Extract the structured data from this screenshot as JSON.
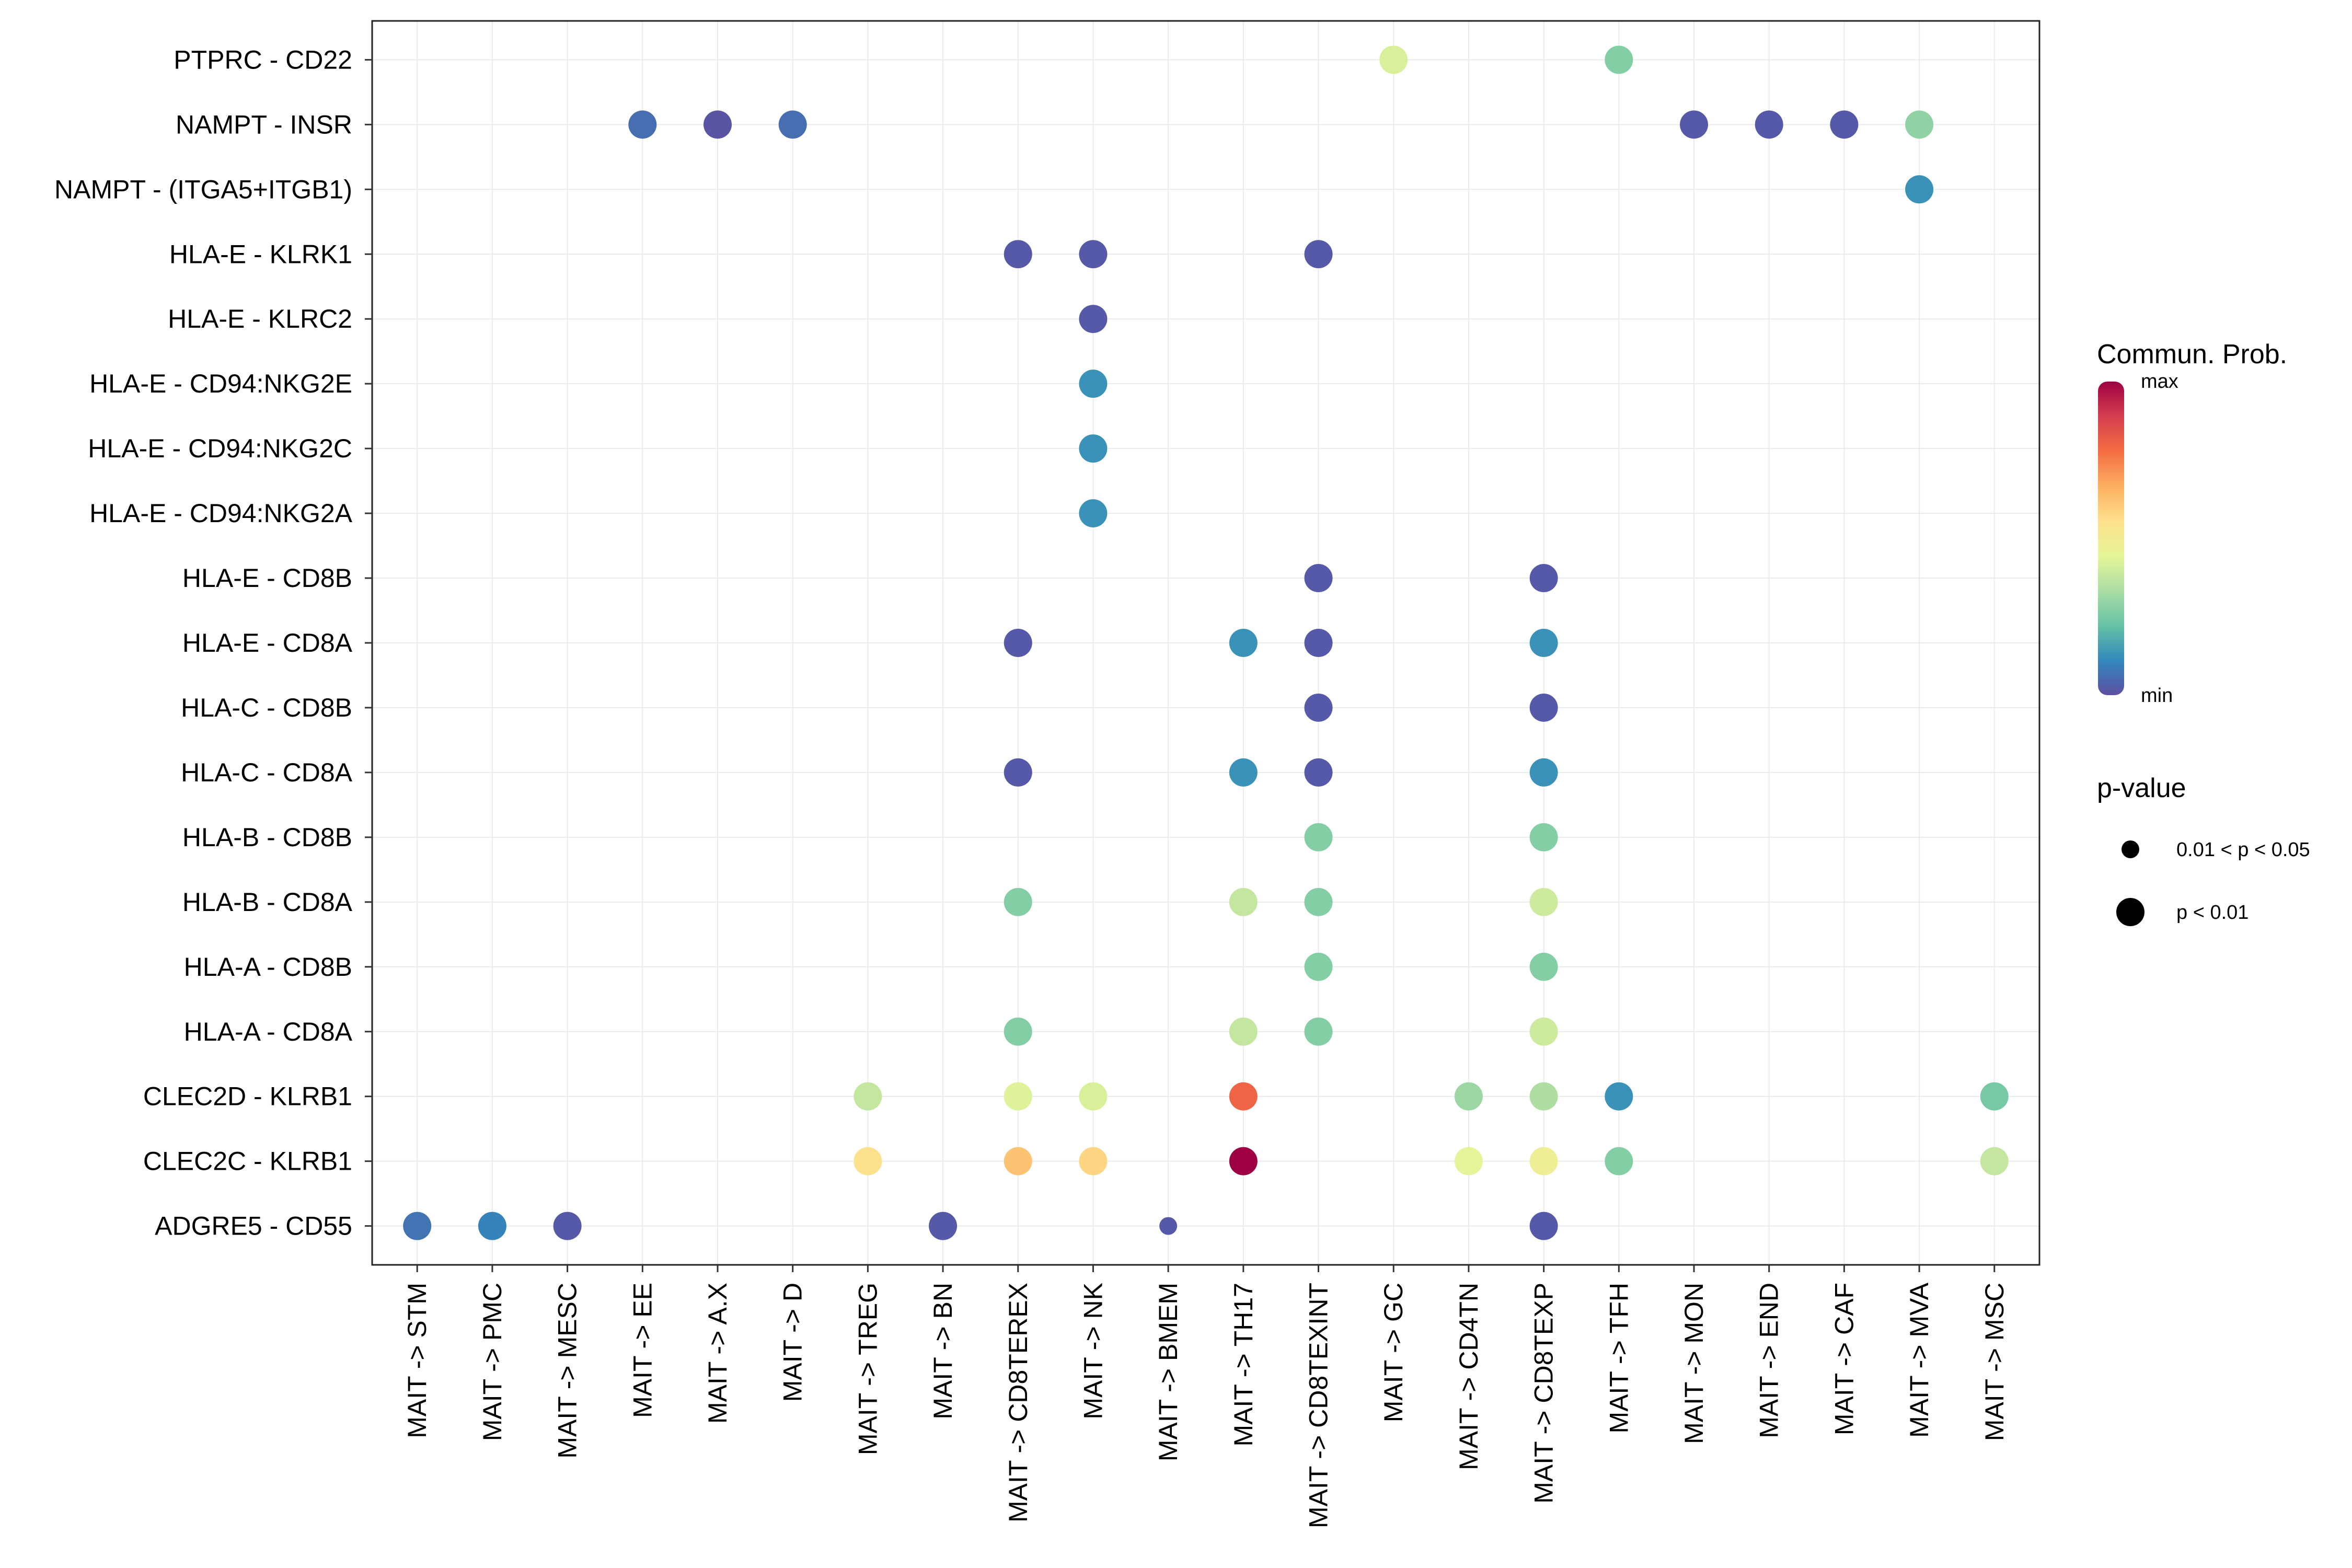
{
  "chart_data": {
    "type": "dot",
    "title": "",
    "xlabel": "",
    "ylabel": "",
    "grid": true,
    "legend_placement": "right",
    "x_categories": [
      "MAIT -> STM",
      "MAIT -> PMC",
      "MAIT -> MESC",
      "MAIT -> EE",
      "MAIT -> A.X",
      "MAIT -> D",
      "MAIT -> TREG",
      "MAIT -> BN",
      "MAIT -> CD8TEREX",
      "MAIT -> NK",
      "MAIT -> BMEM",
      "MAIT -> TH17",
      "MAIT -> CD8TEXINT",
      "MAIT -> GC",
      "MAIT -> CD4TN",
      "MAIT -> CD8TEXP",
      "MAIT -> TFH",
      "MAIT -> MON",
      "MAIT -> END",
      "MAIT -> CAF",
      "MAIT -> MVA",
      "MAIT -> MSC"
    ],
    "y_categories": [
      "PTPRC - CD22",
      "NAMPT - INSR",
      "NAMPT - (ITGA5+ITGB1)",
      "HLA-E - KLRK1",
      "HLA-E - KLRC2",
      "HLA-E - CD94:NKG2E",
      "HLA-E - CD94:NKG2C",
      "HLA-E - CD94:NKG2A",
      "HLA-E - CD8B",
      "HLA-E - CD8A",
      "HLA-C - CD8B",
      "HLA-C - CD8A",
      "HLA-B - CD8B",
      "HLA-B - CD8A",
      "HLA-A - CD8B",
      "HLA-A - CD8A",
      "CLEC2D - KLRB1",
      "CLEC2C - KLRB1",
      "ADGRE5 - CD55"
    ],
    "color_scale": {
      "title": "Commun. Prob.",
      "max_label": "max",
      "min_label": "min",
      "stops": [
        "#5e4fa2",
        "#3288bd",
        "#66c2a5",
        "#abdda4",
        "#e6f598",
        "#fee08b",
        "#fdae61",
        "#f46d43",
        "#d53e4f",
        "#9e0142"
      ]
    },
    "pvalue_legend": {
      "title": "p-value",
      "levels": [
        {
          "label": "0.01 < p < 0.05",
          "size": "small"
        },
        {
          "label": "p < 0.01",
          "size": "large"
        }
      ]
    },
    "points": [
      {
        "x": "MAIT -> GC",
        "y": "PTPRC - CD22",
        "prob": 0.42,
        "p": "p < 0.01"
      },
      {
        "x": "MAIT -> TFH",
        "y": "PTPRC - CD22",
        "prob": 0.27,
        "p": "p < 0.01"
      },
      {
        "x": "MAIT -> EE",
        "y": "NAMPT - INSR",
        "prob": 0.06,
        "p": "p < 0.01"
      },
      {
        "x": "MAIT -> A.X",
        "y": "NAMPT - INSR",
        "prob": 0.01,
        "p": "p < 0.01"
      },
      {
        "x": "MAIT -> D",
        "y": "NAMPT - INSR",
        "prob": 0.06,
        "p": "p < 0.01"
      },
      {
        "x": "MAIT -> MON",
        "y": "NAMPT - INSR",
        "prob": 0.02,
        "p": "p < 0.01"
      },
      {
        "x": "MAIT -> END",
        "y": "NAMPT - INSR",
        "prob": 0.02,
        "p": "p < 0.01"
      },
      {
        "x": "MAIT -> CAF",
        "y": "NAMPT - INSR",
        "prob": 0.02,
        "p": "p < 0.01"
      },
      {
        "x": "MAIT -> MVA",
        "y": "NAMPT - INSR",
        "prob": 0.29,
        "p": "p < 0.01"
      },
      {
        "x": "MAIT -> MVA",
        "y": "NAMPT - (ITGA5+ITGB1)",
        "prob": 0.13,
        "p": "p < 0.01"
      },
      {
        "x": "MAIT -> CD8TEREX",
        "y": "HLA-E - KLRK1",
        "prob": 0.02,
        "p": "p < 0.01"
      },
      {
        "x": "MAIT -> NK",
        "y": "HLA-E - KLRK1",
        "prob": 0.02,
        "p": "p < 0.01"
      },
      {
        "x": "MAIT -> CD8TEXINT",
        "y": "HLA-E - KLRK1",
        "prob": 0.02,
        "p": "p < 0.01"
      },
      {
        "x": "MAIT -> NK",
        "y": "HLA-E - KLRC2",
        "prob": 0.02,
        "p": "p < 0.01"
      },
      {
        "x": "MAIT -> NK",
        "y": "HLA-E - CD94:NKG2E",
        "prob": 0.13,
        "p": "p < 0.01"
      },
      {
        "x": "MAIT -> NK",
        "y": "HLA-E - CD94:NKG2C",
        "prob": 0.13,
        "p": "p < 0.01"
      },
      {
        "x": "MAIT -> NK",
        "y": "HLA-E - CD94:NKG2A",
        "prob": 0.13,
        "p": "p < 0.01"
      },
      {
        "x": "MAIT -> CD8TEXINT",
        "y": "HLA-E - CD8B",
        "prob": 0.02,
        "p": "p < 0.01"
      },
      {
        "x": "MAIT -> CD8TEXP",
        "y": "HLA-E - CD8B",
        "prob": 0.02,
        "p": "p < 0.01"
      },
      {
        "x": "MAIT -> CD8TEREX",
        "y": "HLA-E - CD8A",
        "prob": 0.02,
        "p": "p < 0.01"
      },
      {
        "x": "MAIT -> TH17",
        "y": "HLA-E - CD8A",
        "prob": 0.13,
        "p": "p < 0.01"
      },
      {
        "x": "MAIT -> CD8TEXINT",
        "y": "HLA-E - CD8A",
        "prob": 0.02,
        "p": "p < 0.01"
      },
      {
        "x": "MAIT -> CD8TEXP",
        "y": "HLA-E - CD8A",
        "prob": 0.13,
        "p": "p < 0.01"
      },
      {
        "x": "MAIT -> CD8TEXINT",
        "y": "HLA-C - CD8B",
        "prob": 0.02,
        "p": "p < 0.01"
      },
      {
        "x": "MAIT -> CD8TEXP",
        "y": "HLA-C - CD8B",
        "prob": 0.02,
        "p": "p < 0.01"
      },
      {
        "x": "MAIT -> CD8TEREX",
        "y": "HLA-C - CD8A",
        "prob": 0.02,
        "p": "p < 0.01"
      },
      {
        "x": "MAIT -> TH17",
        "y": "HLA-C - CD8A",
        "prob": 0.13,
        "p": "p < 0.01"
      },
      {
        "x": "MAIT -> CD8TEXINT",
        "y": "HLA-C - CD8A",
        "prob": 0.02,
        "p": "p < 0.01"
      },
      {
        "x": "MAIT -> CD8TEXP",
        "y": "HLA-C - CD8A",
        "prob": 0.13,
        "p": "p < 0.01"
      },
      {
        "x": "MAIT -> CD8TEXINT",
        "y": "HLA-B - CD8B",
        "prob": 0.27,
        "p": "p < 0.01"
      },
      {
        "x": "MAIT -> CD8TEXP",
        "y": "HLA-B - CD8B",
        "prob": 0.27,
        "p": "p < 0.01"
      },
      {
        "x": "MAIT -> CD8TEREX",
        "y": "HLA-B - CD8A",
        "prob": 0.27,
        "p": "p < 0.01"
      },
      {
        "x": "MAIT -> TH17",
        "y": "HLA-B - CD8A",
        "prob": 0.38,
        "p": "p < 0.01"
      },
      {
        "x": "MAIT -> CD8TEXINT",
        "y": "HLA-B - CD8A",
        "prob": 0.27,
        "p": "p < 0.01"
      },
      {
        "x": "MAIT -> CD8TEXP",
        "y": "HLA-B - CD8A",
        "prob": 0.4,
        "p": "p < 0.01"
      },
      {
        "x": "MAIT -> CD8TEXINT",
        "y": "HLA-A - CD8B",
        "prob": 0.27,
        "p": "p < 0.01"
      },
      {
        "x": "MAIT -> CD8TEXP",
        "y": "HLA-A - CD8B",
        "prob": 0.27,
        "p": "p < 0.01"
      },
      {
        "x": "MAIT -> CD8TEREX",
        "y": "HLA-A - CD8A",
        "prob": 0.27,
        "p": "p < 0.01"
      },
      {
        "x": "MAIT -> TH17",
        "y": "HLA-A - CD8A",
        "prob": 0.38,
        "p": "p < 0.01"
      },
      {
        "x": "MAIT -> CD8TEXINT",
        "y": "HLA-A - CD8A",
        "prob": 0.27,
        "p": "p < 0.01"
      },
      {
        "x": "MAIT -> CD8TEXP",
        "y": "HLA-A - CD8A",
        "prob": 0.4,
        "p": "p < 0.01"
      },
      {
        "x": "MAIT -> TREG",
        "y": "CLEC2D - KLRB1",
        "prob": 0.38,
        "p": "p < 0.01"
      },
      {
        "x": "MAIT -> CD8TEREX",
        "y": "CLEC2D - KLRB1",
        "prob": 0.43,
        "p": "p < 0.01"
      },
      {
        "x": "MAIT -> NK",
        "y": "CLEC2D - KLRB1",
        "prob": 0.42,
        "p": "p < 0.01"
      },
      {
        "x": "MAIT -> TH17",
        "y": "CLEC2D - KLRB1",
        "prob": 0.8,
        "p": "p < 0.01"
      },
      {
        "x": "MAIT -> CD4TN",
        "y": "CLEC2D - KLRB1",
        "prob": 0.31,
        "p": "p < 0.01"
      },
      {
        "x": "MAIT -> CD8TEXP",
        "y": "CLEC2D - KLRB1",
        "prob": 0.34,
        "p": "p < 0.01"
      },
      {
        "x": "MAIT -> TFH",
        "y": "CLEC2D - KLRB1",
        "prob": 0.13,
        "p": "p < 0.01"
      },
      {
        "x": "MAIT -> MSC",
        "y": "CLEC2D - KLRB1",
        "prob": 0.25,
        "p": "p < 0.01"
      },
      {
        "x": "MAIT -> TREG",
        "y": "CLEC2C - KLRB1",
        "prob": 0.55,
        "p": "p < 0.01"
      },
      {
        "x": "MAIT -> CD8TEREX",
        "y": "CLEC2C - KLRB1",
        "prob": 0.62,
        "p": "p < 0.01"
      },
      {
        "x": "MAIT -> NK",
        "y": "CLEC2C - KLRB1",
        "prob": 0.58,
        "p": "p < 0.01"
      },
      {
        "x": "MAIT -> TH17",
        "y": "CLEC2C - KLRB1",
        "prob": 1.0,
        "p": "p < 0.01"
      },
      {
        "x": "MAIT -> CD4TN",
        "y": "CLEC2C - KLRB1",
        "prob": 0.44,
        "p": "p < 0.01"
      },
      {
        "x": "MAIT -> CD8TEXP",
        "y": "CLEC2C - KLRB1",
        "prob": 0.48,
        "p": "p < 0.01"
      },
      {
        "x": "MAIT -> TFH",
        "y": "CLEC2C - KLRB1",
        "prob": 0.27,
        "p": "p < 0.01"
      },
      {
        "x": "MAIT -> MSC",
        "y": "CLEC2C - KLRB1",
        "prob": 0.38,
        "p": "p < 0.01"
      },
      {
        "x": "MAIT -> STM",
        "y": "ADGRE5 - CD55",
        "prob": 0.07,
        "p": "p < 0.01"
      },
      {
        "x": "MAIT -> PMC",
        "y": "ADGRE5 - CD55",
        "prob": 0.1,
        "p": "p < 0.01"
      },
      {
        "x": "MAIT -> MESC",
        "y": "ADGRE5 - CD55",
        "prob": 0.02,
        "p": "p < 0.01"
      },
      {
        "x": "MAIT -> BN",
        "y": "ADGRE5 - CD55",
        "prob": 0.02,
        "p": "p < 0.01"
      },
      {
        "x": "MAIT -> BMEM",
        "y": "ADGRE5 - CD55",
        "prob": 0.02,
        "p": "0.01 < p < 0.05"
      },
      {
        "x": "MAIT -> CD8TEXP",
        "y": "ADGRE5 - CD55",
        "prob": 0.02,
        "p": "p < 0.01"
      }
    ]
  }
}
